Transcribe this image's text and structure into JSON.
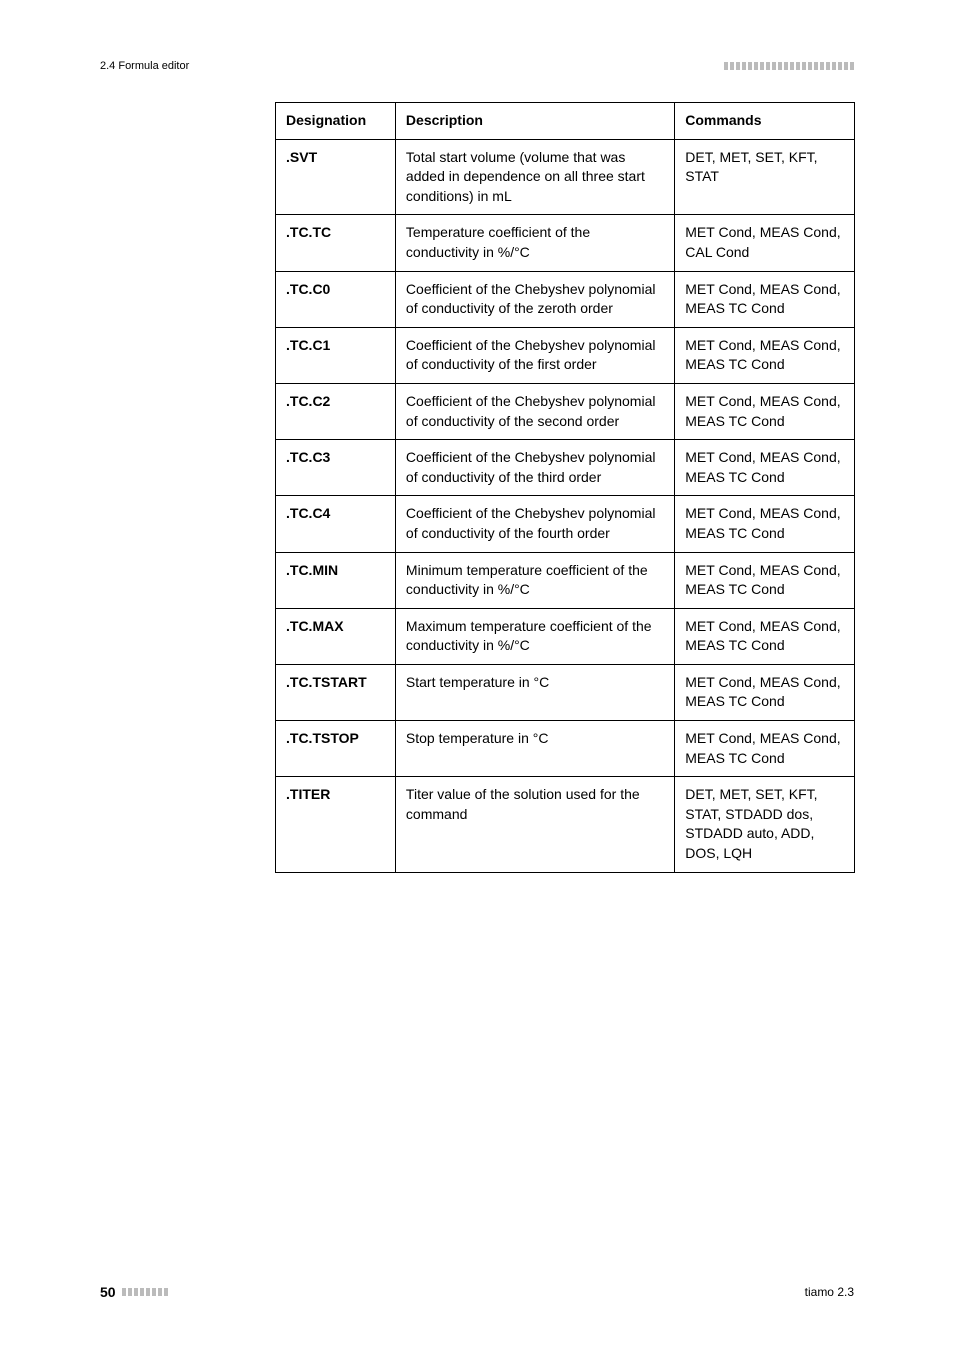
{
  "header": {
    "section": "2.4 Formula editor"
  },
  "table": {
    "columns": [
      "Designation",
      "Description",
      "Commands"
    ],
    "rows": [
      {
        "designation": ".SVT",
        "description": "Total start volume (volume that was added in dependence on all three start conditions) in mL",
        "commands": "DET, MET, SET, KFT, STAT"
      },
      {
        "designation": ".TC.TC",
        "description": "Temperature coefficient of the conductivity in %/°C",
        "commands": "MET Cond, MEAS Cond, CAL Cond"
      },
      {
        "designation": ".TC.C0",
        "description": "Coefficient of the Chebyshev polynomial of conductivity of the zeroth order",
        "commands": "MET Cond, MEAS Cond, MEAS TC Cond"
      },
      {
        "designation": ".TC.C1",
        "description": "Coefficient of the Chebyshev polynomial of conductivity of the first order",
        "commands": "MET Cond, MEAS Cond, MEAS TC Cond"
      },
      {
        "designation": ".TC.C2",
        "description": "Coefficient of the Chebyshev polynomial of conductivity of the second order",
        "commands": "MET Cond, MEAS Cond, MEAS TC Cond"
      },
      {
        "designation": ".TC.C3",
        "description": "Coefficient of the Chebyshev polynomial of conductivity of the third order",
        "commands": "MET Cond, MEAS Cond, MEAS TC Cond"
      },
      {
        "designation": ".TC.C4",
        "description": "Coefficient of the Chebyshev polynomial of conductivity of the fourth order",
        "commands": "MET Cond, MEAS Cond, MEAS TC Cond"
      },
      {
        "designation": ".TC.MIN",
        "description": "Minimum temperature coefficient of the conductivity in %/°C",
        "commands": "MET Cond, MEAS Cond, MEAS TC Cond"
      },
      {
        "designation": ".TC.MAX",
        "description": "Maximum temperature coefficient of the conductivity in %/°C",
        "commands": "MET Cond, MEAS Cond, MEAS TC Cond"
      },
      {
        "designation": ".TC.TSTART",
        "description": "Start temperature in °C",
        "commands": "MET Cond, MEAS Cond, MEAS TC Cond"
      },
      {
        "designation": ".TC.TSTOP",
        "description": "Stop temperature in °C",
        "commands": "MET Cond, MEAS Cond, MEAS TC Cond"
      },
      {
        "designation": ".TITER",
        "description": "Titer value of the solution used for the command",
        "commands": "DET, MET, SET, KFT, STAT, STDADD dos, STDADD auto, ADD, DOS, LQH"
      }
    ]
  },
  "footer": {
    "page": "50",
    "product": "tiamo 2.3"
  },
  "style": {
    "bar_count_header": 22,
    "bar_count_footer": 8
  }
}
